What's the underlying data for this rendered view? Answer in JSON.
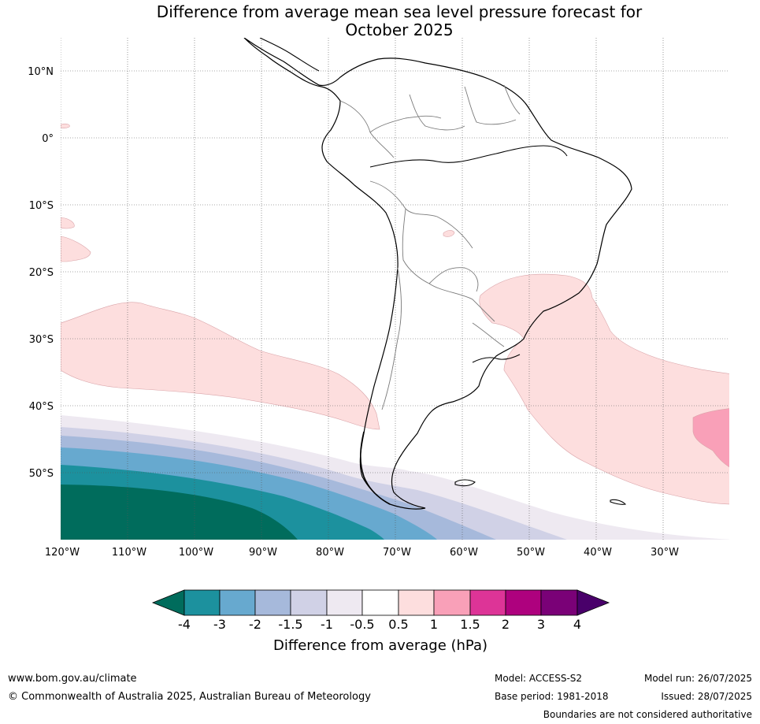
{
  "title_line1": "Difference from average mean sea level pressure forecast for",
  "title_line2": "October 2025",
  "map": {
    "lat_labels": [
      "10°N",
      "0°",
      "10°S",
      "20°S",
      "30°S",
      "40°S",
      "50°S"
    ],
    "lon_labels": [
      "120°W",
      "110°W",
      "100°W",
      "90°W",
      "80°W",
      "70°W",
      "60°W",
      "50°W",
      "40°W",
      "30°W"
    ],
    "grid": "dotted"
  },
  "legend": {
    "title": "Difference from average (hPa)",
    "ticks": [
      "-4",
      "-3",
      "-2",
      "-1.5",
      "-1",
      "-0.5",
      "0.5",
      "1",
      "1.5",
      "2",
      "3",
      "4"
    ],
    "colors": {
      "below_neg4": "#006c5c",
      "neg4_neg3": "#1c919e",
      "neg3_neg2": "#67a9cf",
      "neg2_neg15": "#a6b9db",
      "neg15_neg1": "#d0d1e6",
      "neg1_neg05": "#eee9f1",
      "neg05_05": "#ffffff",
      "p05_1": "#fddede",
      "p1_15": "#f9a0b8",
      "p15_2": "#dd3497",
      "p2_3": "#ae017e",
      "p3_4": "#7a0177",
      "above_4": "#49006a"
    }
  },
  "footer": {
    "website": "www.bom.gov.au/climate",
    "copyright": "© Commonwealth of Australia 2025, Australian Bureau of Meteorology",
    "model": "Model: ACCESS-S2",
    "base_period": "Base period: 1981-2018",
    "model_run": "Model run: 26/07/2025",
    "issued": "Issued: 28/07/2025",
    "boundaries_note": "Boundaries are not considered authoritative"
  }
}
